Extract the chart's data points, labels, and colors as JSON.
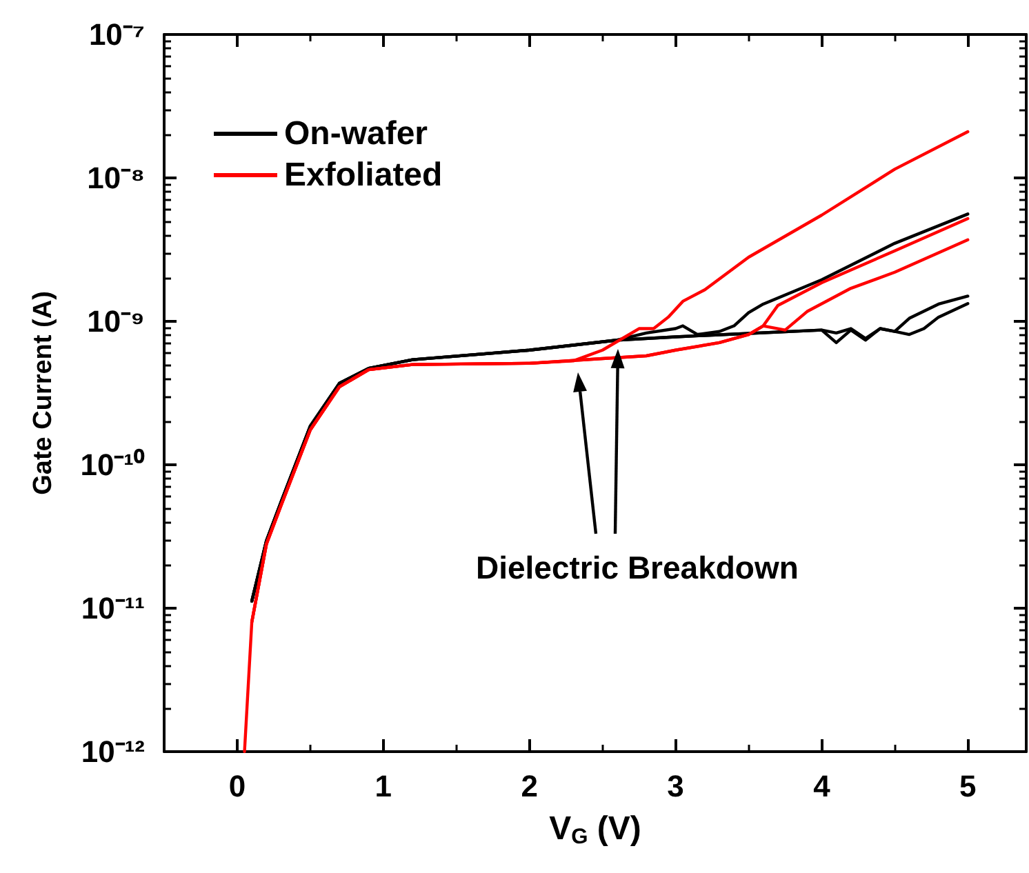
{
  "chart_data": {
    "type": "line",
    "xlabel": "V$_{G}$ (V)",
    "ylabel": "Gate Current (A)",
    "log": "y",
    "legend": "top left",
    "grid": false,
    "marker": "none",
    "line_style": "solid",
    "xlim": [
      -0.5,
      5.4
    ],
    "xticks": [
      0,
      1,
      2,
      3,
      4,
      5
    ],
    "ylim": [
      1e-12,
      1e-07
    ],
    "yticks": [
      {
        "value": 1e-12,
        "label": "10⁻¹²"
      },
      {
        "value": 1e-11,
        "label": "10⁻¹¹"
      },
      {
        "value": 1e-10,
        "label": "10⁻¹⁰"
      },
      {
        "value": 1e-09,
        "label": "10⁻⁹"
      },
      {
        "value": 1e-08,
        "label": "10⁻⁸"
      },
      {
        "value": 1e-07,
        "label": "10⁻⁷"
      }
    ],
    "annotations": [
      "Dielectric Breakdown"
    ],
    "series": [
      {
        "name": "On-wafer",
        "color": "#000000",
        "x": [
          0.1,
          0.2,
          0.3,
          0.5,
          0.7,
          0.9,
          1.2,
          2.0,
          2.6,
          2.8,
          3.0,
          3.05,
          3.15,
          3.3,
          3.4,
          3.5,
          3.6,
          4.0,
          4.5,
          5.0
        ],
        "values": [
          1.12e-11,
          2.95e-11,
          5.5e-11,
          1.86e-10,
          3.7e-10,
          4.7e-10,
          5.4e-10,
          6.3e-10,
          7.4e-10,
          8.3e-10,
          8.9e-10,
          9.3e-10,
          8.1e-10,
          8.5e-10,
          9.3e-10,
          1.15e-09,
          1.32e-09,
          1.95e-09,
          3.5e-09,
          5.6e-09
        ]
      },
      {
        "color": "#000000",
        "x": [
          0.1,
          0.2,
          0.3,
          0.5,
          0.7,
          0.9,
          1.2,
          2.0,
          2.6,
          3.0,
          4.0,
          4.1,
          4.2,
          4.3,
          4.4,
          4.5,
          4.6,
          4.8,
          5.0
        ],
        "values": [
          1.12e-11,
          2.95e-11,
          5.5e-11,
          1.86e-10,
          3.7e-10,
          4.7e-10,
          5.4e-10,
          6.3e-10,
          7.4e-10,
          7.8e-10,
          8.7e-10,
          7.1e-10,
          8.7e-10,
          7.4e-10,
          8.9e-10,
          8.5e-10,
          1.05e-09,
          1.32e-09,
          1.5e-09
        ]
      },
      {
        "color": "#000000",
        "x": [
          0.1,
          0.2,
          0.3,
          0.5,
          0.7,
          0.9,
          1.2,
          2.0,
          2.6,
          3.0,
          4.0,
          4.1,
          4.2,
          4.3,
          4.4,
          4.5,
          4.6,
          4.7,
          4.8,
          5.0
        ],
        "values": [
          1.12e-11,
          2.95e-11,
          5.5e-11,
          1.86e-10,
          3.7e-10,
          4.7e-10,
          5.4e-10,
          6.3e-10,
          7.4e-10,
          7.8e-10,
          8.7e-10,
          8.3e-10,
          8.9e-10,
          7.6e-10,
          8.9e-10,
          8.5e-10,
          8.1e-10,
          8.9e-10,
          1.07e-09,
          1.33e-09
        ]
      },
      {
        "name": "Exfoliated",
        "color": "#ff0000",
        "x": [
          0.05,
          0.1,
          0.2,
          0.3,
          0.5,
          0.7,
          0.9,
          1.2,
          2.0,
          2.3,
          2.5,
          2.75,
          2.85,
          2.95,
          3.05,
          3.2,
          3.5,
          4.0,
          4.5,
          5.0
        ],
        "values": [
          1e-12,
          8e-12,
          2.8e-11,
          5.2e-11,
          1.75e-10,
          3.5e-10,
          4.6e-10,
          5e-10,
          5.1e-10,
          5.3e-10,
          6.3e-10,
          8.9e-10,
          8.9e-10,
          1.07e-09,
          1.38e-09,
          1.66e-09,
          2.8e-09,
          5.5e-09,
          1.15e-08,
          2.1e-08
        ]
      },
      {
        "color": "#ff0000",
        "x": [
          0.1,
          0.2,
          0.3,
          0.5,
          0.7,
          0.9,
          1.2,
          2.0,
          2.5,
          2.8,
          3.0,
          3.3,
          3.5,
          3.6,
          3.7,
          4.0,
          4.5,
          5.0
        ],
        "values": [
          8e-12,
          2.8e-11,
          5.2e-11,
          1.75e-10,
          3.5e-10,
          4.6e-10,
          5e-10,
          5.1e-10,
          5.5e-10,
          5.75e-10,
          6.3e-10,
          7.1e-10,
          8.1e-10,
          9.3e-10,
          1.29e-09,
          1.86e-09,
          3.1e-09,
          5.2e-09
        ]
      },
      {
        "color": "#ff0000",
        "x": [
          0.1,
          0.2,
          0.3,
          0.5,
          0.7,
          0.9,
          1.2,
          2.0,
          2.5,
          2.8,
          3.0,
          3.3,
          3.5,
          3.6,
          3.75,
          3.9,
          4.2,
          4.5,
          5.0
        ],
        "values": [
          8e-12,
          2.8e-11,
          5.2e-11,
          1.75e-10,
          3.5e-10,
          4.6e-10,
          5e-10,
          5.1e-10,
          5.5e-10,
          5.75e-10,
          6.3e-10,
          7.1e-10,
          8.1e-10,
          9.3e-10,
          8.7e-10,
          1.17e-09,
          1.7e-09,
          2.2e-09,
          3.7e-09
        ]
      }
    ]
  }
}
